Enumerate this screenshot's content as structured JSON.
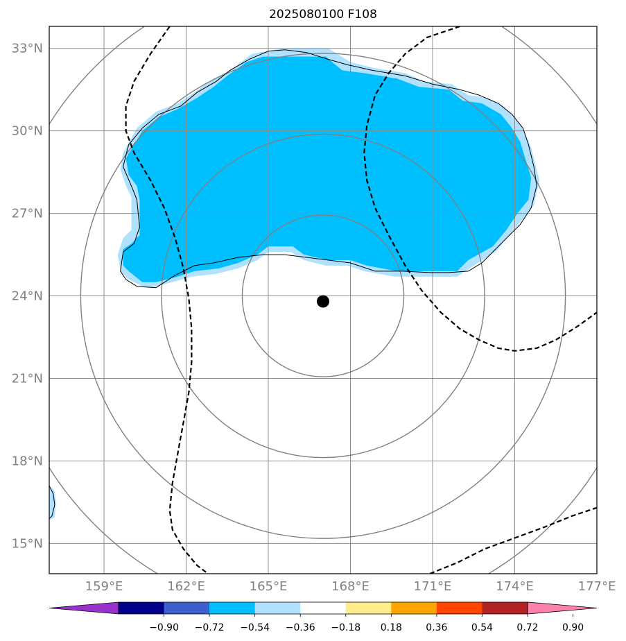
{
  "chart_data": {
    "type": "map",
    "title": "2025080100 F108",
    "map": {
      "lon_range": [
        157.0,
        177.0
      ],
      "lat_range": [
        13.9,
        33.8
      ],
      "gridlines": true,
      "lon_ticks": [
        159,
        162,
        165,
        168,
        171,
        174,
        177
      ],
      "lat_ticks": [
        15,
        18,
        21,
        24,
        27,
        30,
        33
      ],
      "lon_tick_labels": [
        "159°E",
        "162°E",
        "165°E",
        "168°E",
        "171°E",
        "174°E",
        "177°E"
      ],
      "lat_tick_labels": [
        "15°N",
        "18°N",
        "21°N",
        "24°N",
        "27°N",
        "30°N",
        "33°N"
      ]
    },
    "center_marker": {
      "lon": 167.0,
      "lat": 23.8
    },
    "range_rings": {
      "center": {
        "lon": 167.0,
        "lat": 24.0
      },
      "radii_deg": [
        2.95,
        5.9,
        8.85,
        11.8
      ],
      "color": "#808080"
    },
    "shaded_field": {
      "levels": [
        -0.9,
        -0.72,
        -0.54,
        -0.36,
        -0.18,
        0.18,
        0.36,
        0.54,
        0.72,
        0.9
      ],
      "colors": [
        "#9932cc",
        "#00008b",
        "#3d5fcd",
        "#00bfff",
        "#b0e2ff",
        "#ffffff",
        "#ffec8b",
        "#ffa500",
        "#ff4500",
        "#b22222",
        "#ff82ab"
      ],
      "extend": "both",
      "regions": [
        {
          "category": "-0.54 to -0.36",
          "color": "#00bfff",
          "polygon": [
            [
              160.7,
              24.5
            ],
            [
              160.4,
              24.5
            ],
            [
              159.9,
              24.9
            ],
            [
              159.7,
              25.1
            ],
            [
              159.7,
              25.7
            ],
            [
              160.0,
              25.9
            ],
            [
              160.3,
              26.2
            ],
            [
              160.3,
              27.5
            ],
            [
              160.2,
              28.0
            ],
            [
              159.9,
              28.4
            ],
            [
              159.8,
              29.0
            ],
            [
              160.4,
              30.0
            ],
            [
              161.0,
              30.5
            ],
            [
              161.7,
              30.8
            ],
            [
              162.4,
              31.2
            ],
            [
              163.0,
              31.6
            ],
            [
              163.5,
              32.0
            ],
            [
              164.2,
              32.5
            ],
            [
              164.8,
              32.7
            ],
            [
              165.6,
              32.7
            ],
            [
              167.1,
              32.7
            ],
            [
              167.7,
              32.2
            ],
            [
              168.5,
              32.1
            ],
            [
              169.7,
              31.9
            ],
            [
              170.5,
              31.6
            ],
            [
              171.6,
              31.5
            ],
            [
              172.1,
              31.1
            ],
            [
              172.8,
              31.0
            ],
            [
              173.5,
              30.6
            ],
            [
              173.9,
              30.1
            ],
            [
              174.2,
              29.6
            ],
            [
              174.6,
              28.3
            ],
            [
              174.5,
              27.5
            ],
            [
              174.1,
              27.0
            ],
            [
              173.7,
              26.4
            ],
            [
              173.2,
              25.8
            ],
            [
              172.3,
              25.3
            ],
            [
              171.9,
              24.9
            ],
            [
              170.9,
              24.9
            ],
            [
              169.7,
              24.9
            ],
            [
              168.6,
              25.1
            ],
            [
              168.0,
              25.3
            ],
            [
              167.2,
              25.3
            ],
            [
              166.3,
              25.5
            ],
            [
              165.9,
              25.8
            ],
            [
              165.0,
              25.8
            ],
            [
              164.6,
              25.5
            ],
            [
              163.9,
              25.2
            ],
            [
              163.2,
              25.0
            ],
            [
              162.3,
              24.9
            ],
            [
              161.7,
              24.7
            ],
            [
              160.9,
              24.5
            ]
          ]
        },
        {
          "category": "-0.36 to -0.18",
          "color": "#b0e2ff",
          "polygon": [
            [
              160.5,
              24.3
            ],
            [
              159.9,
              24.6
            ],
            [
              159.6,
              24.9
            ],
            [
              159.5,
              25.5
            ],
            [
              159.7,
              26.1
            ],
            [
              160.0,
              26.4
            ],
            [
              160.0,
              27.6
            ],
            [
              159.8,
              28.0
            ],
            [
              159.6,
              28.6
            ],
            [
              159.7,
              29.2
            ],
            [
              160.2,
              30.1
            ],
            [
              160.9,
              30.7
            ],
            [
              161.7,
              31.0
            ],
            [
              162.3,
              31.4
            ],
            [
              163.0,
              31.9
            ],
            [
              163.6,
              32.2
            ],
            [
              164.4,
              32.8
            ],
            [
              165.5,
              33.0
            ],
            [
              167.2,
              33.0
            ],
            [
              168.0,
              32.5
            ],
            [
              168.8,
              32.3
            ],
            [
              170.0,
              32.1
            ],
            [
              170.7,
              31.8
            ],
            [
              171.7,
              31.7
            ],
            [
              172.3,
              31.3
            ],
            [
              173.0,
              31.2
            ],
            [
              173.6,
              30.9
            ],
            [
              174.3,
              30.1
            ],
            [
              174.6,
              29.4
            ],
            [
              174.9,
              28.2
            ],
            [
              174.7,
              27.3
            ],
            [
              174.3,
              26.8
            ],
            [
              173.8,
              26.2
            ],
            [
              173.3,
              25.6
            ],
            [
              172.5,
              25.1
            ],
            [
              171.9,
              24.7
            ],
            [
              170.8,
              24.7
            ],
            [
              169.6,
              24.7
            ],
            [
              168.5,
              24.9
            ],
            [
              167.9,
              25.1
            ],
            [
              167.1,
              25.1
            ],
            [
              166.3,
              25.3
            ],
            [
              165.8,
              25.6
            ],
            [
              165.0,
              25.6
            ],
            [
              164.6,
              25.3
            ],
            [
              163.9,
              25.0
            ],
            [
              163.1,
              24.8
            ],
            [
              162.2,
              24.7
            ],
            [
              161.5,
              24.5
            ],
            [
              160.7,
              24.3
            ]
          ]
        },
        {
          "category": "-0.36 to -0.18",
          "color": "#b0e2ff",
          "polygon": [
            [
              157.0,
              17.1
            ],
            [
              157.2,
              16.9
            ],
            [
              157.25,
              16.5
            ],
            [
              157.2,
              15.95
            ],
            [
              157.0,
              15.85
            ]
          ]
        }
      ]
    },
    "contours": [
      {
        "style": "solid",
        "color": "#000000",
        "points": [
          [
            160.9,
            24.3
          ],
          [
            160.2,
            24.35
          ],
          [
            159.8,
            24.6
          ],
          [
            159.6,
            24.9
          ],
          [
            159.7,
            25.6
          ],
          [
            160.1,
            25.9
          ],
          [
            160.3,
            26.5
          ],
          [
            160.2,
            27.5
          ],
          [
            160.0,
            28.0
          ],
          [
            159.7,
            28.7
          ],
          [
            159.9,
            29.5
          ],
          [
            160.4,
            30.1
          ],
          [
            161.0,
            30.6
          ],
          [
            161.8,
            30.9
          ],
          [
            162.4,
            31.4
          ],
          [
            163.1,
            31.8
          ],
          [
            163.6,
            32.2
          ],
          [
            164.3,
            32.6
          ],
          [
            165.0,
            32.9
          ],
          [
            165.6,
            32.95
          ],
          [
            166.4,
            32.85
          ],
          [
            167.2,
            32.6
          ],
          [
            167.9,
            32.4
          ],
          [
            168.8,
            32.2
          ],
          [
            170.0,
            32.0
          ],
          [
            171.0,
            31.7
          ],
          [
            172.0,
            31.5
          ],
          [
            172.7,
            31.3
          ],
          [
            173.4,
            31.0
          ],
          [
            173.9,
            30.6
          ],
          [
            174.3,
            30.1
          ],
          [
            174.5,
            29.5
          ],
          [
            174.7,
            28.7
          ],
          [
            174.8,
            28.0
          ],
          [
            174.6,
            27.2
          ],
          [
            174.2,
            26.6
          ],
          [
            173.7,
            26.1
          ],
          [
            173.2,
            25.6
          ],
          [
            172.8,
            25.2
          ],
          [
            172.3,
            24.9
          ],
          [
            171.6,
            24.85
          ],
          [
            170.9,
            24.85
          ],
          [
            169.9,
            24.9
          ],
          [
            168.9,
            24.9
          ],
          [
            168.0,
            25.2
          ],
          [
            167.2,
            25.3
          ],
          [
            166.4,
            25.4
          ],
          [
            165.6,
            25.5
          ],
          [
            164.8,
            25.5
          ],
          [
            163.9,
            25.4
          ],
          [
            163.0,
            25.2
          ],
          [
            162.3,
            25.1
          ],
          [
            161.6,
            24.75
          ],
          [
            160.9,
            24.3
          ]
        ]
      },
      {
        "style": "solid",
        "color": "#000000",
        "points": [
          [
            157.0,
            17.1
          ],
          [
            157.15,
            16.8
          ],
          [
            157.2,
            16.4
          ],
          [
            157.1,
            16.0
          ],
          [
            157.0,
            15.9
          ]
        ]
      },
      {
        "style": "dashed",
        "color": "#000000",
        "points": [
          [
            161.4,
            33.8
          ],
          [
            160.7,
            32.8
          ],
          [
            160.1,
            31.8
          ],
          [
            159.8,
            30.9
          ],
          [
            159.8,
            30.0
          ],
          [
            160.1,
            29.2
          ],
          [
            160.7,
            28.2
          ],
          [
            161.2,
            27.2
          ],
          [
            161.6,
            26.1
          ],
          [
            161.9,
            25.0
          ],
          [
            162.1,
            23.9
          ],
          [
            162.2,
            22.8
          ],
          [
            162.2,
            21.6
          ],
          [
            162.1,
            20.5
          ],
          [
            161.9,
            19.4
          ],
          [
            161.7,
            18.3
          ],
          [
            161.5,
            17.2
          ],
          [
            161.4,
            16.2
          ],
          [
            161.5,
            15.5
          ],
          [
            161.9,
            14.8
          ],
          [
            162.4,
            14.2
          ],
          [
            162.8,
            13.9
          ]
        ]
      },
      {
        "style": "dashed",
        "color": "#000000",
        "points": [
          [
            172.0,
            33.8
          ],
          [
            170.8,
            33.4
          ],
          [
            170.0,
            32.8
          ],
          [
            169.4,
            32.1
          ],
          [
            168.9,
            31.3
          ],
          [
            168.6,
            30.2
          ],
          [
            168.5,
            29.2
          ],
          [
            168.6,
            28.2
          ],
          [
            168.9,
            27.2
          ],
          [
            169.4,
            26.2
          ],
          [
            170.0,
            25.1
          ],
          [
            170.6,
            24.2
          ],
          [
            171.3,
            23.4
          ],
          [
            172.0,
            22.8
          ],
          [
            172.7,
            22.4
          ],
          [
            173.4,
            22.1
          ],
          [
            174.0,
            22.0
          ],
          [
            174.8,
            22.1
          ],
          [
            175.5,
            22.4
          ],
          [
            176.3,
            22.9
          ],
          [
            177.0,
            23.4
          ]
        ]
      },
      {
        "style": "dashed",
        "color": "#000000",
        "points": [
          [
            170.9,
            13.9
          ],
          [
            171.9,
            14.3
          ],
          [
            172.9,
            14.8
          ],
          [
            174.0,
            15.2
          ],
          [
            175.1,
            15.6
          ],
          [
            176.1,
            16.0
          ],
          [
            177.0,
            16.3
          ]
        ]
      }
    ],
    "colorbar": {
      "tick_labels": [
        "−0.90",
        "−0.72",
        "−0.54",
        "−0.36",
        "−0.18",
        "0.18",
        "0.36",
        "0.54",
        "0.72",
        "0.90"
      ],
      "extend": "both",
      "placement": "bottom"
    }
  }
}
